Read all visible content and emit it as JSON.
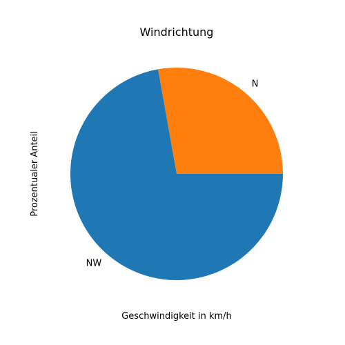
{
  "chart_data": {
    "type": "pie",
    "title": "Windrichtung",
    "xlabel": "Geschwindigkeit in km/h",
    "ylabel": "Prozentualer Anteil",
    "categories": [
      "N",
      "NW"
    ],
    "values": [
      27.8,
      72.2
    ],
    "unit": "percent",
    "start_angle_deg": 0,
    "direction": "counterclockwise",
    "colors": [
      "#ff7f0e",
      "#1f77b4"
    ],
    "legend": "none",
    "grid": false
  }
}
